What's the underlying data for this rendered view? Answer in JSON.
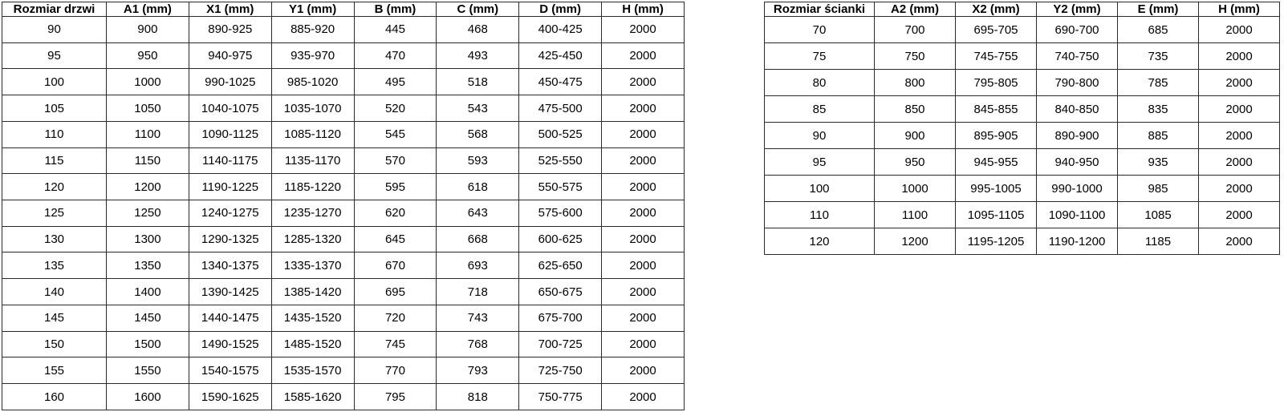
{
  "page": {
    "background_color": "#ffffff",
    "border_color": "#2b2b2b",
    "text_color": "#000000"
  },
  "door_table": {
    "headers": [
      "Rozmiar drzwi",
      "A1 (mm)",
      "X1 (mm)",
      "Y1 (mm)",
      "B (mm)",
      "C (mm)",
      "D (mm)",
      "H (mm)"
    ],
    "rows": [
      [
        "90",
        "900",
        "890-925",
        "885-920",
        "445",
        "468",
        "400-425",
        "2000"
      ],
      [
        "95",
        "950",
        "940-975",
        "935-970",
        "470",
        "493",
        "425-450",
        "2000"
      ],
      [
        "100",
        "1000",
        "990-1025",
        "985-1020",
        "495",
        "518",
        "450-475",
        "2000"
      ],
      [
        "105",
        "1050",
        "1040-1075",
        "1035-1070",
        "520",
        "543",
        "475-500",
        "2000"
      ],
      [
        "110",
        "1100",
        "1090-1125",
        "1085-1120",
        "545",
        "568",
        "500-525",
        "2000"
      ],
      [
        "115",
        "1150",
        "1140-1175",
        "1135-1170",
        "570",
        "593",
        "525-550",
        "2000"
      ],
      [
        "120",
        "1200",
        "1190-1225",
        "1185-1220",
        "595",
        "618",
        "550-575",
        "2000"
      ],
      [
        "125",
        "1250",
        "1240-1275",
        "1235-1270",
        "620",
        "643",
        "575-600",
        "2000"
      ],
      [
        "130",
        "1300",
        "1290-1325",
        "1285-1320",
        "645",
        "668",
        "600-625",
        "2000"
      ],
      [
        "135",
        "1350",
        "1340-1375",
        "1335-1370",
        "670",
        "693",
        "625-650",
        "2000"
      ],
      [
        "140",
        "1400",
        "1390-1425",
        "1385-1420",
        "695",
        "718",
        "650-675",
        "2000"
      ],
      [
        "145",
        "1450",
        "1440-1475",
        "1435-1520",
        "720",
        "743",
        "675-700",
        "2000"
      ],
      [
        "150",
        "1500",
        "1490-1525",
        "1485-1520",
        "745",
        "768",
        "700-725",
        "2000"
      ],
      [
        "155",
        "1550",
        "1540-1575",
        "1535-1570",
        "770",
        "793",
        "725-750",
        "2000"
      ],
      [
        "160",
        "1600",
        "1590-1625",
        "1585-1620",
        "795",
        "818",
        "750-775",
        "2000"
      ]
    ]
  },
  "wall_table": {
    "headers": [
      "Rozmiar ścianki",
      "A2 (mm)",
      "X2 (mm)",
      "Y2 (mm)",
      "E (mm)",
      "H (mm)"
    ],
    "rows": [
      [
        "70",
        "700",
        "695-705",
        "690-700",
        "685",
        "2000"
      ],
      [
        "75",
        "750",
        "745-755",
        "740-750",
        "735",
        "2000"
      ],
      [
        "80",
        "800",
        "795-805",
        "790-800",
        "785",
        "2000"
      ],
      [
        "85",
        "850",
        "845-855",
        "840-850",
        "835",
        "2000"
      ],
      [
        "90",
        "900",
        "895-905",
        "890-900",
        "885",
        "2000"
      ],
      [
        "95",
        "950",
        "945-955",
        "940-950",
        "935",
        "2000"
      ],
      [
        "100",
        "1000",
        "995-1005",
        "990-1000",
        "985",
        "2000"
      ],
      [
        "110",
        "1100",
        "1095-1105",
        "1090-1100",
        "1085",
        "2000"
      ],
      [
        "120",
        "1200",
        "1195-1205",
        "1190-1200",
        "1185",
        "2000"
      ]
    ]
  }
}
